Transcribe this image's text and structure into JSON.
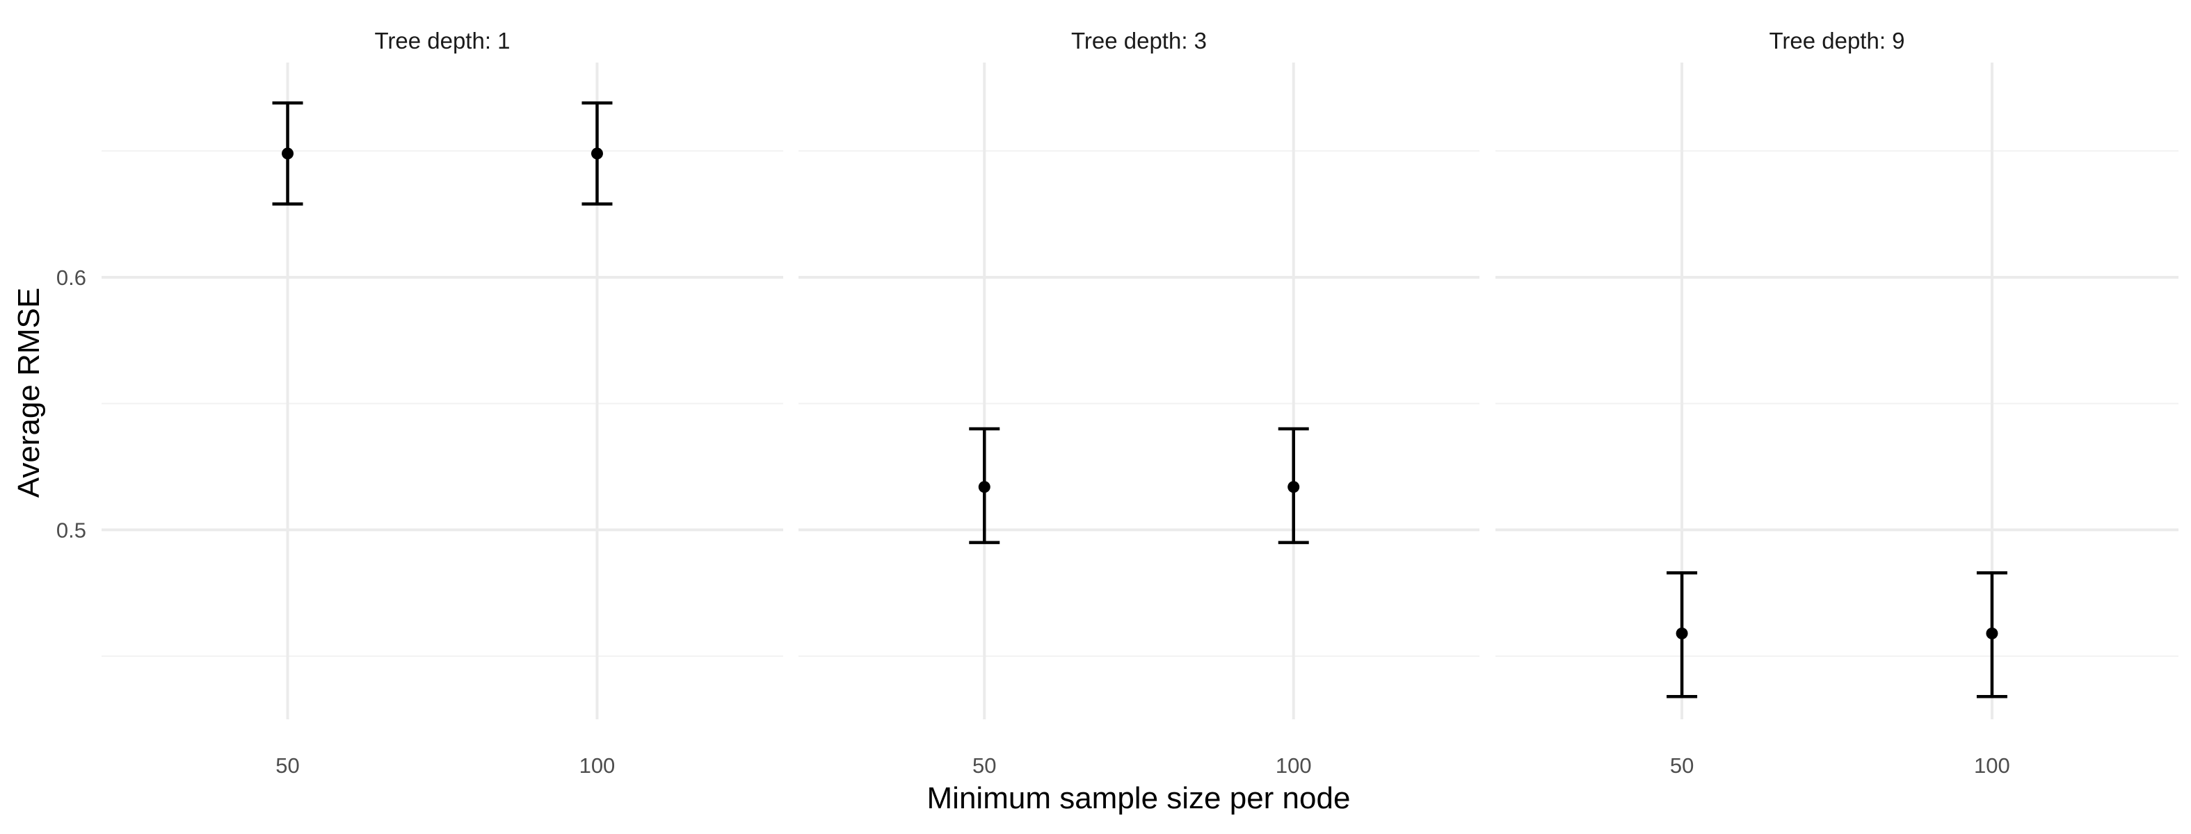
{
  "chart_data": {
    "type": "errorbar",
    "title": "",
    "xlabel": "Minimum sample size per node",
    "ylabel": "Average RMSE",
    "y_ticks": [
      0.5,
      0.6
    ],
    "ylim": [
      0.425,
      0.685
    ],
    "x_categories": [
      "50",
      "100"
    ],
    "panels": [
      {
        "label": "Tree depth: 1",
        "points": [
          {
            "x": "50",
            "y": 0.649,
            "ymin": 0.629,
            "ymax": 0.669
          },
          {
            "x": "100",
            "y": 0.649,
            "ymin": 0.629,
            "ymax": 0.669
          }
        ]
      },
      {
        "label": "Tree depth: 3",
        "points": [
          {
            "x": "50",
            "y": 0.517,
            "ymin": 0.495,
            "ymax": 0.54
          },
          {
            "x": "100",
            "y": 0.517,
            "ymin": 0.495,
            "ymax": 0.54
          }
        ]
      },
      {
        "label": "Tree depth: 9",
        "points": [
          {
            "x": "50",
            "y": 0.459,
            "ymin": 0.434,
            "ymax": 0.483
          },
          {
            "x": "100",
            "y": 0.459,
            "ymin": 0.434,
            "ymax": 0.483
          }
        ]
      }
    ],
    "grid": true,
    "colors": {
      "point": "#000000",
      "errorbar": "#000000",
      "grid_major": "#ebebeb",
      "grid_minor": "#f2f2f2"
    }
  }
}
